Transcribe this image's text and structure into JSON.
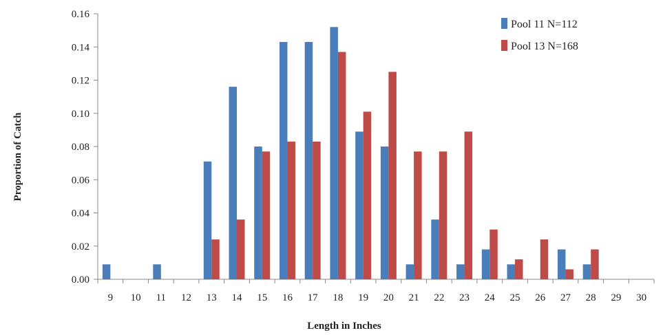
{
  "chart_data": {
    "type": "bar",
    "xlabel": "Length in Inches",
    "ylabel": "Proportion of Catch",
    "ylim": [
      0,
      0.16
    ],
    "yticks": [
      "0.00",
      "0.02",
      "0.04",
      "0.06",
      "0.08",
      "0.10",
      "0.12",
      "0.14",
      "0.16"
    ],
    "categories": [
      "9",
      "10",
      "11",
      "12",
      "13",
      "14",
      "15",
      "16",
      "17",
      "18",
      "19",
      "20",
      "21",
      "22",
      "23",
      "24",
      "25",
      "26",
      "27",
      "28",
      "29",
      "30"
    ],
    "grid": false,
    "legend_position": "top-right",
    "series": [
      {
        "name": "Pool 11  N=112",
        "color": "#4a7ebb",
        "values": [
          0.009,
          0,
          0.009,
          0,
          0.071,
          0.116,
          0.08,
          0.143,
          0.143,
          0.152,
          0.089,
          0.08,
          0.009,
          0.036,
          0.009,
          0.018,
          0.009,
          0,
          0.018,
          0.009,
          0,
          0
        ]
      },
      {
        "name": "Pool 13  N=168",
        "color": "#be4b48",
        "values": [
          0,
          0,
          0,
          0,
          0.024,
          0.036,
          0.077,
          0.083,
          0.083,
          0.137,
          0.101,
          0.125,
          0.077,
          0.077,
          0.089,
          0.03,
          0.012,
          0.024,
          0.006,
          0.018,
          0,
          0
        ]
      }
    ]
  }
}
